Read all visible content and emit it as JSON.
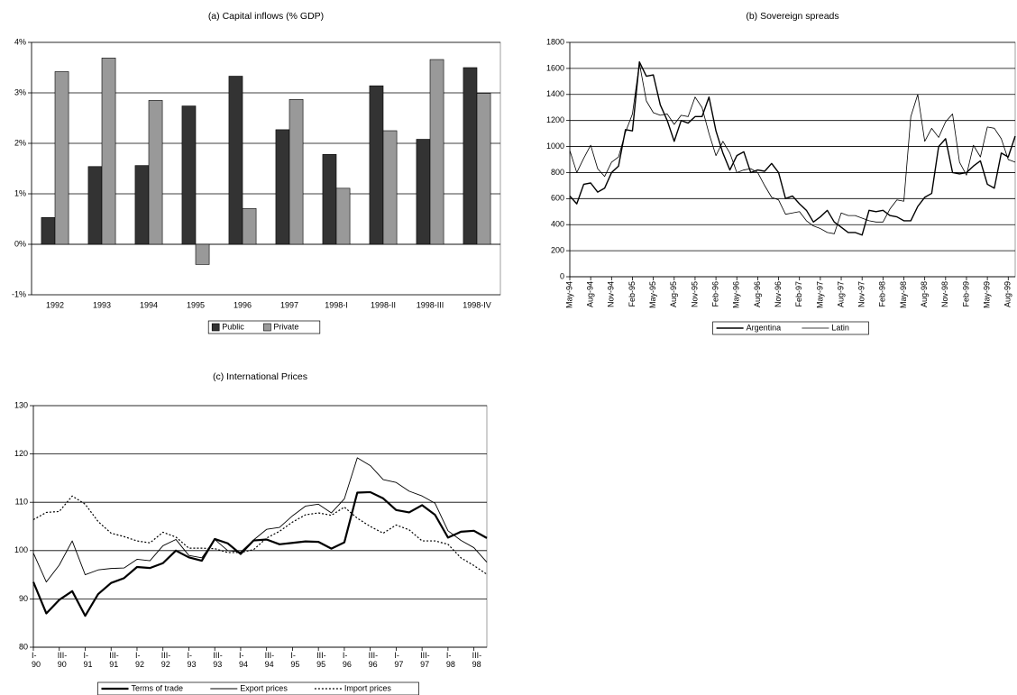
{
  "chart_data": [
    {
      "type": "bar",
      "title": "(a) Capital inflows (% GDP)",
      "categories": [
        "1992",
        "1993",
        "1994",
        "1995",
        "1996",
        "1997",
        "1998-I",
        "1998-II",
        "1998-III",
        "1998-IV"
      ],
      "series": [
        {
          "name": "Public",
          "color": "#333333",
          "values": [
            0.53,
            1.54,
            1.56,
            2.74,
            3.33,
            2.27,
            1.78,
            3.14,
            2.08,
            3.5
          ]
        },
        {
          "name": "Private",
          "color": "#999999",
          "values": [
            3.42,
            3.69,
            2.85,
            -0.4,
            0.71,
            2.87,
            1.11,
            2.25,
            3.66,
            2.99
          ]
        }
      ],
      "ylim": [
        -1,
        4
      ],
      "yticks": [
        {
          "value": -1,
          "label": "-1%"
        },
        {
          "value": 0,
          "label": "0%"
        },
        {
          "value": 1,
          "label": "1%"
        },
        {
          "value": 2,
          "label": "2%"
        },
        {
          "value": 3,
          "label": "3%"
        },
        {
          "value": 4,
          "label": "4%"
        }
      ],
      "grid": true
    },
    {
      "type": "line",
      "title": "(b) Sovereign spreads",
      "categories": [
        "May-94",
        null,
        null,
        "Aug-94",
        null,
        null,
        "Nov-94",
        null,
        null,
        "Feb-95",
        null,
        null,
        "May-95",
        null,
        null,
        "Aug-95",
        null,
        null,
        "Nov-95",
        null,
        null,
        "Feb-96",
        null,
        null,
        "May-96",
        null,
        null,
        "Aug-96",
        null,
        null,
        "Nov-96",
        null,
        null,
        "Feb-97",
        null,
        null,
        "May-97",
        null,
        null,
        "Aug-97",
        null,
        null,
        "Nov-97",
        null,
        null,
        "Feb-98",
        null,
        null,
        "May-98",
        null,
        null,
        "Aug-98",
        null,
        null,
        "Nov-98",
        null,
        null,
        "Feb-99",
        null,
        null,
        "May-99",
        null,
        null,
        "Aug-99",
        null
      ],
      "series": [
        {
          "name": "Argentina",
          "color": "#000000",
          "line_width": 1.4,
          "values": [
            620,
            560,
            710,
            720,
            650,
            680,
            800,
            850,
            1130,
            1120,
            1650,
            1540,
            1550,
            1320,
            1200,
            1040,
            1200,
            1180,
            1230,
            1230,
            1380,
            1120,
            950,
            820,
            930,
            960,
            800,
            820,
            810,
            870,
            800,
            600,
            620,
            560,
            510,
            420,
            460,
            510,
            420,
            380,
            340,
            340,
            320,
            510,
            500,
            510,
            470,
            460,
            430,
            430,
            540,
            610,
            640,
            1000,
            1060,
            800,
            790,
            800,
            850,
            890,
            710,
            680,
            950,
            920,
            1080
          ]
        },
        {
          "name": "Latin",
          "color": "#000000",
          "line_width": 0.8,
          "values": [
            970,
            800,
            910,
            1010,
            830,
            770,
            880,
            920,
            1110,
            1250,
            1640,
            1350,
            1260,
            1240,
            1250,
            1170,
            1240,
            1230,
            1380,
            1300,
            1100,
            930,
            1040,
            950,
            800,
            820,
            830,
            800,
            700,
            610,
            590,
            480,
            490,
            500,
            430,
            390,
            370,
            340,
            330,
            490,
            470,
            470,
            450,
            430,
            420,
            420,
            520,
            590,
            580,
            1230,
            1400,
            1040,
            1140,
            1070,
            1190,
            1250,
            880,
            780,
            1010,
            920,
            1150,
            1140,
            1060,
            900,
            880
          ]
        }
      ],
      "ylim": [
        0,
        1800
      ],
      "yticks": [
        0,
        200,
        400,
        600,
        800,
        1000,
        1200,
        1400,
        1600,
        1800
      ],
      "grid": true
    },
    {
      "type": "line",
      "title": "(c) International Prices",
      "categories": [
        "I-\n90",
        null,
        "III-\n90",
        null,
        "I-\n91",
        null,
        "III-\n91",
        null,
        "I-\n92",
        null,
        "III-\n92",
        null,
        "I-\n93",
        null,
        "III-\n93",
        null,
        "I-\n94",
        null,
        "III-\n94",
        null,
        "I-\n95",
        null,
        "III-\n95",
        null,
        "I-\n96",
        null,
        "III-\n96",
        null,
        "I-\n97",
        null,
        "III-\n97",
        null,
        "I-\n98",
        null,
        "III-\n98",
        null
      ],
      "series": [
        {
          "name": "Terms of trade",
          "color": "#000000",
          "line_width": 2.2,
          "values": [
            93.5,
            87,
            89.8,
            91.6,
            86.5,
            91,
            93.3,
            94.3,
            96.6,
            96.4,
            97.4,
            100,
            98.6,
            97.9,
            102.4,
            101.5,
            99.3,
            102.1,
            102.3,
            101.3,
            101.6,
            101.9,
            101.8,
            100.4,
            101.7,
            112,
            112.1,
            110.8,
            108.4,
            107.9,
            109.4,
            107.4,
            102.7,
            103.9,
            104.1,
            102.6
          ]
        },
        {
          "name": "Export prices",
          "color": "#000000",
          "line_width": 0.9,
          "values": [
            99.5,
            93.5,
            97,
            102,
            95,
            96,
            96.3,
            96.4,
            98.2,
            97.9,
            101,
            102.3,
            99,
            98.5,
            102.3,
            100,
            99.7,
            102.2,
            104.4,
            104.8,
            107.2,
            109.2,
            109.6,
            107.8,
            110.7,
            119.2,
            117.6,
            114.7,
            114.1,
            112.3,
            111.3,
            109.8,
            104.1,
            102.1,
            100.6,
            97.6
          ]
        },
        {
          "name": "Import prices",
          "color": "#000000",
          "line_width": 1.2,
          "dash": true,
          "values": [
            106.4,
            107.9,
            108.1,
            111.3,
            109.6,
            106,
            103.6,
            102.9,
            102,
            101.6,
            103.8,
            102.8,
            100.5,
            100.5,
            100.4,
            99.6,
            99.6,
            100.2,
            102.6,
            104,
            105.9,
            107.4,
            107.8,
            107.3,
            109,
            106.7,
            105,
            103.6,
            105.3,
            104.3,
            102,
            102,
            101.3,
            98.5,
            96.9,
            95.1
          ]
        }
      ],
      "ylim": [
        80,
        130
      ],
      "yticks": [
        80,
        90,
        100,
        110,
        120,
        130
      ],
      "grid": true
    }
  ]
}
